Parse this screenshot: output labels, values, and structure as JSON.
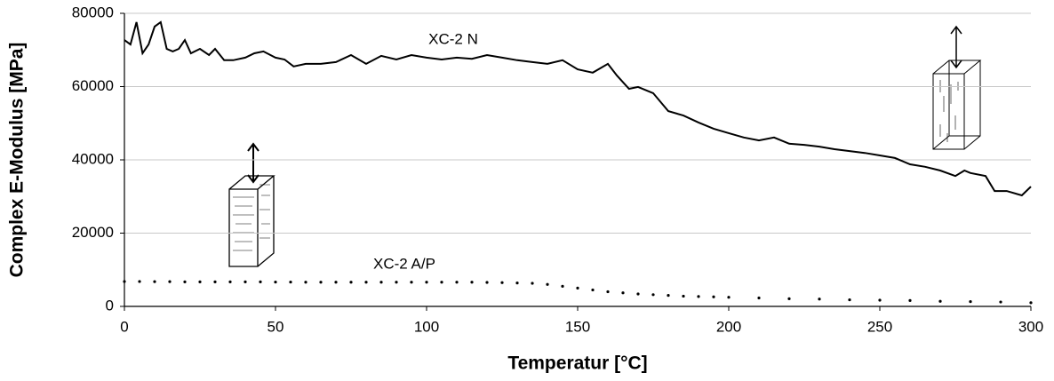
{
  "chart_data": {
    "type": "line",
    "x_label": "Temperatur [°C]",
    "y_label": "Complex E-Modulus [MPa]",
    "xlim": [
      0,
      300
    ],
    "xticks": [
      0,
      50,
      100,
      150,
      200,
      250,
      300
    ],
    "ylim": [
      0,
      80000
    ],
    "yticks": [
      0,
      20000,
      40000,
      60000,
      80000
    ],
    "grid": true,
    "annotations": [
      "XC-2 N",
      "XC-2 A/P"
    ],
    "series": [
      {
        "name": "XC-2 N",
        "color": "#000000",
        "style": "solid",
        "x": [
          0,
          2,
          4,
          6,
          8,
          10,
          12,
          14,
          16,
          18,
          20,
          22,
          25,
          28,
          30,
          33,
          36,
          40,
          43,
          46,
          50,
          53,
          56,
          60,
          65,
          70,
          75,
          80,
          85,
          90,
          95,
          100,
          105,
          110,
          115,
          120,
          125,
          130,
          135,
          140,
          145,
          150,
          155,
          160,
          163,
          167,
          170,
          175,
          180,
          185,
          190,
          195,
          200,
          205,
          210,
          215,
          220,
          225,
          230,
          235,
          240,
          245,
          250,
          255,
          260,
          265,
          270,
          275,
          278,
          280,
          285,
          288,
          292,
          297,
          300
        ],
        "values": [
          72700,
          71500,
          77600,
          69100,
          71500,
          76400,
          77600,
          70300,
          69600,
          70300,
          72700,
          69100,
          70300,
          68600,
          70300,
          67200,
          67200,
          67900,
          69100,
          69600,
          67900,
          67400,
          65500,
          66200,
          66200,
          66700,
          68600,
          66200,
          68400,
          67400,
          68600,
          67900,
          67400,
          67900,
          67600,
          68600,
          67900,
          67200,
          66700,
          66200,
          67200,
          64700,
          63800,
          66200,
          63000,
          59400,
          59900,
          58200,
          53300,
          52100,
          50200,
          48500,
          47300,
          46100,
          45300,
          46100,
          44400,
          44100,
          43600,
          42900,
          42400,
          41900,
          41200,
          40500,
          38800,
          38100,
          37100,
          35600,
          37100,
          36400,
          35600,
          31500,
          31500,
          30300,
          32700
        ]
      },
      {
        "name": "XC-2 A/P",
        "color": "#000000",
        "style": "dotted",
        "x": [
          0,
          5,
          10,
          15,
          20,
          25,
          30,
          35,
          40,
          45,
          50,
          55,
          60,
          65,
          70,
          75,
          80,
          85,
          90,
          95,
          100,
          105,
          110,
          115,
          120,
          125,
          130,
          135,
          140,
          145,
          150,
          155,
          160,
          165,
          170,
          175,
          180,
          185,
          190,
          195,
          200,
          210,
          220,
          230,
          240,
          250,
          260,
          270,
          280,
          290,
          300
        ],
        "values": [
          6800,
          6800,
          6750,
          6750,
          6700,
          6700,
          6700,
          6700,
          6700,
          6700,
          6650,
          6650,
          6600,
          6600,
          6600,
          6600,
          6600,
          6600,
          6600,
          6600,
          6600,
          6600,
          6600,
          6600,
          6550,
          6500,
          6400,
          6300,
          6000,
          5500,
          5000,
          4500,
          4000,
          3700,
          3400,
          3200,
          3000,
          2800,
          2700,
          2600,
          2500,
          2300,
          2100,
          2000,
          1800,
          1700,
          1600,
          1400,
          1300,
          1200,
          1000
        ]
      }
    ]
  }
}
